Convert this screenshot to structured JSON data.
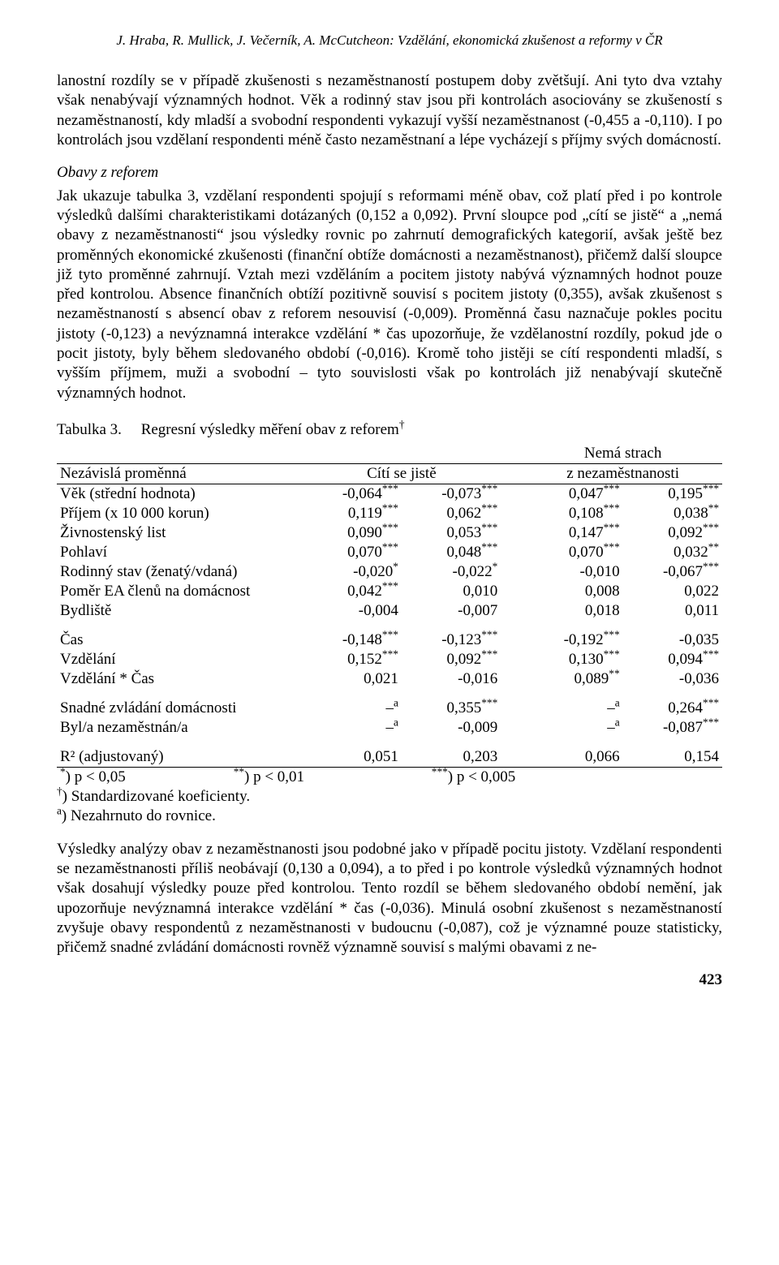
{
  "running_head": "J. Hraba, R. Mullick, J. Večerník, A. McCutcheon: Vzdělání, ekonomická zkušenost a reformy v ČR",
  "para1": "lanostní rozdíly se v případě zkušenosti s nezaměstnaností postupem doby zvětšují. Ani tyto dva vztahy však nenabývají významných hodnot. Věk a rodinný stav jsou při kontrolách asociovány se zkušeností s nezaměstnaností, kdy mladší a svobodní respondenti vykazují vyšší nezaměstnanost (-0,455 a -0,110). I po kontrolách jsou vzdělaní respondenti méně často nezaměstnaní a lépe vycházejí s příjmy svých domácností.",
  "heading_obavy": "Obavy z reforem",
  "para2": "Jak ukazuje tabulka 3, vzdělaní respondenti spojují s reformami méně obav, což platí před i po kontrole výsledků dalšími charakteristikami dotázaných (0,152 a 0,092). První sloupce pod „cítí se jistě“ a „nemá obavy z nezaměstnanosti“ jsou výsledky rovnic po zahrnutí demografických kategorií, avšak ještě bez proměnných ekonomické zkušenosti (finanční obtíže domácnosti a nezaměstnanost), přičemž další sloupce již tyto proměnné zahrnují. Vztah mezi vzděláním a pocitem jistoty nabývá významných hodnot pouze před kontrolou. Absence finančních obtíží pozitivně souvisí s pocitem jistoty (0,355), avšak zkušenost s nezaměstnaností s absencí obav z reforem nesouvisí (-0,009). Proměnná času naznačuje pokles pocitu jistoty (-0,123) a nevýznamná interakce vzdělání * čas upozorňuje, že vzdělanostní rozdíly, pokud jde o pocit jistoty, byly během sledovaného období (-0,016). Kromě toho jistěji se cítí respondenti mladší, s vyšším příjmem, muži a svobodní – tyto souvislosti však po kontrolách již nenabývají skutečně významných hodnot.",
  "table": {
    "caption_label": "Tabulka 3.",
    "caption_text": "Regresní výsledky měření obav z reforem",
    "caption_dagger": "†",
    "col_headers": {
      "c0": "Nezávislá proměnná",
      "c1": "Cítí se jistě",
      "c2_line1": "Nemá strach",
      "c2_line2": "z nezaměstnanosti"
    },
    "rows_block1": [
      {
        "label": "Věk (střední hodnota)",
        "v1": "-0,064",
        "s1": "***",
        "v2": "-0,073",
        "s2": "***",
        "v3": "0,047",
        "s3": "***",
        "v4": "0,195",
        "s4": "***"
      },
      {
        "label": "Příjem (x 10 000 korun)",
        "v1": "0,119",
        "s1": "***",
        "v2": "0,062",
        "s2": "***",
        "v3": "0,108",
        "s3": "***",
        "v4": "0,038",
        "s4": "**"
      },
      {
        "label": "Živnostenský list",
        "v1": "0,090",
        "s1": "***",
        "v2": "0,053",
        "s2": "***",
        "v3": "0,147",
        "s3": "***",
        "v4": "0,092",
        "s4": "***"
      },
      {
        "label": "Pohlaví",
        "v1": "0,070",
        "s1": "***",
        "v2": "0,048",
        "s2": "***",
        "v3": "0,070",
        "s3": "***",
        "v4": "0,032",
        "s4": "**"
      },
      {
        "label": "Rodinný stav (ženatý/vdaná)",
        "v1": "-0,020",
        "s1": "*",
        "v2": "-0,022",
        "s2": "*",
        "v3": "-0,010",
        "s3": "",
        "v4": "-0,067",
        "s4": "***"
      },
      {
        "label": "Poměr EA členů na domácnost",
        "v1": "0,042",
        "s1": "***",
        "v2": "0,010",
        "s2": "",
        "v3": "0,008",
        "s3": "",
        "v4": "0,022",
        "s4": ""
      },
      {
        "label": "Bydliště",
        "v1": "-0,004",
        "s1": "",
        "v2": "-0,007",
        "s2": "",
        "v3": "0,018",
        "s3": "",
        "v4": "0,011",
        "s4": ""
      }
    ],
    "rows_block2": [
      {
        "label": "Čas",
        "v1": "-0,148",
        "s1": "***",
        "v2": "-0,123",
        "s2": "***",
        "v3": "-0,192",
        "s3": "***",
        "v4": "-0,035",
        "s4": ""
      },
      {
        "label": "Vzdělání",
        "v1": "0,152",
        "s1": "***",
        "v2": "0,092",
        "s2": "***",
        "v3": "0,130",
        "s3": "***",
        "v4": "0,094",
        "s4": "***"
      },
      {
        "label": "Vzdělání * Čas",
        "v1": "0,021",
        "s1": "",
        "v2": "-0,016",
        "s2": "",
        "v3": "0,089",
        "s3": "**",
        "v4": "-0,036",
        "s4": ""
      }
    ],
    "rows_block3": [
      {
        "label": "Snadné zvládání domácnosti",
        "v1": "–",
        "s1": "a",
        "v2": "0,355",
        "s2": "***",
        "v3": "–",
        "s3": "a",
        "v4": "0,264",
        "s4": "***"
      },
      {
        "label": "Byl/a nezaměstnán/a",
        "v1": "–",
        "s1": "a",
        "v2": "-0,009",
        "s2": "",
        "v3": "–",
        "s3": "a",
        "v4": "-0,087",
        "s4": "***"
      }
    ],
    "rows_block4": [
      {
        "label": "R² (adjustovaný)",
        "v1": "0,051",
        "s1": "",
        "v2": "0,203",
        "s2": "",
        "v3": "0,066",
        "s3": "",
        "v4": "0,154",
        "s4": ""
      }
    ],
    "sig": {
      "l1": "*",
      "t1": ") p < 0,05",
      "l2": "**",
      "t2": ") p < 0,01",
      "l3": "***",
      "t3": ") p < 0,005"
    },
    "footnote_dagger": "†",
    "footnote_dagger_text": ") Standardizované koeficienty.",
    "footnote_a": "a",
    "footnote_a_text": ") Nezahrnuto do rovnice."
  },
  "para3": "Výsledky analýzy obav z nezaměstnanosti jsou podobné jako v případě pocitu jistoty. Vzdělaní respondenti se nezaměstnanosti příliš neobávají (0,130 a 0,094), a to před i po kontrole výsledků významných hodnot však dosahují výsledky pouze před kontrolou. Tento rozdíl se během sledovaného období nemění, jak upozorňuje nevýznamná interakce vzdělání * čas (-0,036). Minulá osobní zkušenost s nezaměstnaností zvyšuje obavy respondentů z nezaměstnanosti v budoucnu (-0,087), což je významné pouze statisticky, přičemž snadné zvládání domácnosti rovněž významně souvisí s malými obavami z ne-",
  "page_number": "423"
}
